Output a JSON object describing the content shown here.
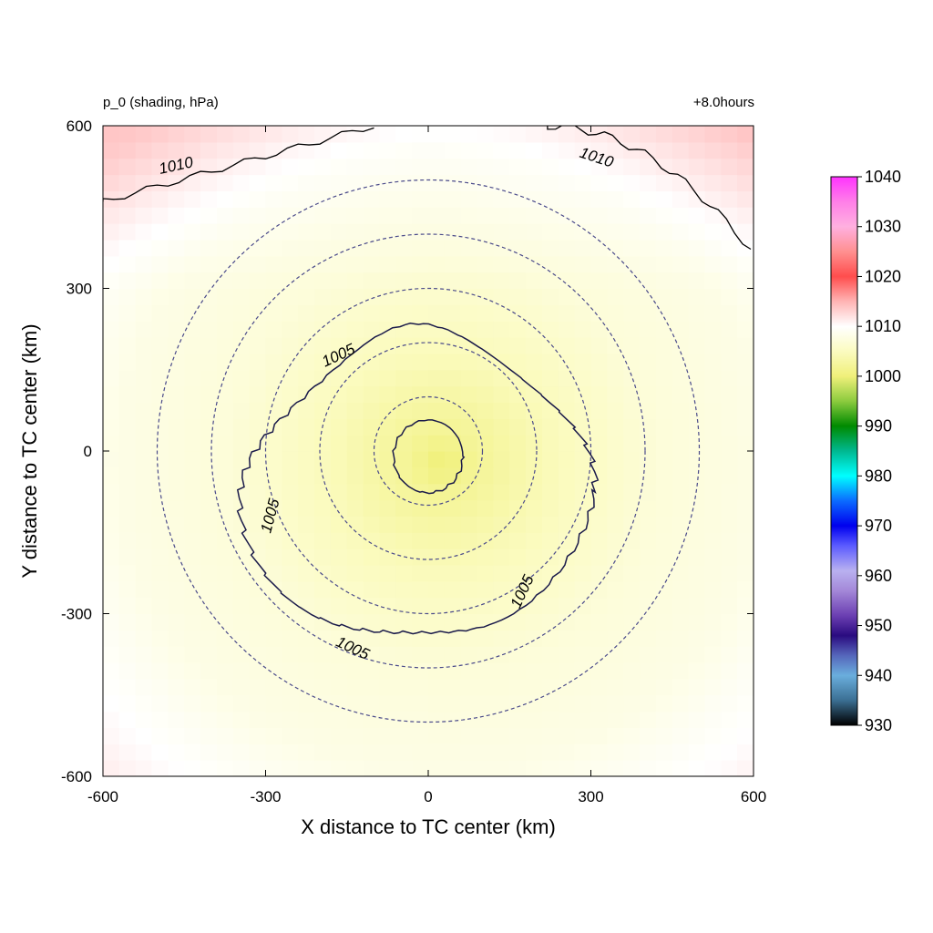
{
  "chart_data": {
    "type": "heatmap",
    "title_left": "p_0 (shading, hPa)",
    "title_right": "+8.0hours",
    "xlabel": "X distance to TC center (km)",
    "ylabel": "Y distance to TC center (km)",
    "xlim": [
      -600,
      600
    ],
    "ylim": [
      -600,
      600
    ],
    "x_ticks": [
      -600,
      -300,
      0,
      300,
      600
    ],
    "y_ticks": [
      -600,
      -300,
      0,
      300,
      600
    ],
    "x_tick_labels": [
      "-600",
      "-300",
      "0",
      "300",
      "600"
    ],
    "y_tick_labels": [
      "-600",
      "-300",
      "0",
      "300",
      "600"
    ],
    "field": {
      "variable": "p_0",
      "units": "hPa",
      "center_value": 1000,
      "radial_profile": [
        {
          "r_km": 0,
          "value": 1000
        },
        {
          "r_km": 60,
          "value": 1002
        },
        {
          "r_km": 200,
          "value": 1004.5
        },
        {
          "r_km": 400,
          "value": 1007
        },
        {
          "r_km": 600,
          "value": 1008
        },
        {
          "r_km": 850,
          "value": 1011
        }
      ]
    },
    "contours": [
      {
        "level": 1000,
        "shape": "inner-core",
        "labels": []
      },
      {
        "level": 1005,
        "shape": "irregular-ring",
        "labels": [
          {
            "text": "1005",
            "x": -165,
            "y": 175,
            "angle": -25
          },
          {
            "text": "1005",
            "x": -290,
            "y": -120,
            "angle": -75
          },
          {
            "text": "1005",
            "x": 175,
            "y": -260,
            "angle": -65
          },
          {
            "text": "1005",
            "x": -140,
            "y": -365,
            "angle": 25
          }
        ]
      },
      {
        "level": 1010,
        "shape": "corner-edges",
        "labels": [
          {
            "text": "1010",
            "x": -465,
            "y": 525,
            "angle": -12
          },
          {
            "text": "1010",
            "x": 310,
            "y": 540,
            "angle": 18
          }
        ]
      }
    ],
    "dashed_circles_km": [
      100,
      200,
      300,
      400,
      500
    ],
    "colorbar": {
      "min": 930,
      "max": 1040,
      "tick_values": [
        1040,
        1030,
        1020,
        1010,
        1000,
        990,
        980,
        970,
        960,
        950,
        940,
        930
      ],
      "tick_labels": [
        "1040",
        "1030",
        "1020",
        "1010",
        "1000",
        "990",
        "980",
        "970",
        "960",
        "950",
        "940",
        "930"
      ],
      "stops": [
        {
          "value": 930,
          "color": "#000000"
        },
        {
          "value": 935,
          "color": "#3b6f93"
        },
        {
          "value": 940,
          "color": "#6aaedd"
        },
        {
          "value": 944,
          "color": "#5566bb"
        },
        {
          "value": 948,
          "color": "#2a0b80"
        },
        {
          "value": 952,
          "color": "#6b3fb2"
        },
        {
          "value": 957,
          "color": "#a488d8"
        },
        {
          "value": 961,
          "color": "#b9b1f0"
        },
        {
          "value": 966,
          "color": "#5b5bff"
        },
        {
          "value": 970,
          "color": "#0000ee"
        },
        {
          "value": 975,
          "color": "#0b6bff"
        },
        {
          "value": 980,
          "color": "#00ffff"
        },
        {
          "value": 985,
          "color": "#00b890"
        },
        {
          "value": 990,
          "color": "#008a00"
        },
        {
          "value": 995,
          "color": "#8ccb3e"
        },
        {
          "value": 1000,
          "color": "#f0f07a"
        },
        {
          "value": 1005,
          "color": "#fbfbc0"
        },
        {
          "value": 1010,
          "color": "#ffffff"
        },
        {
          "value": 1015,
          "color": "#ffb4b4"
        },
        {
          "value": 1020,
          "color": "#ff4d4d"
        },
        {
          "value": 1025,
          "color": "#ff9090"
        },
        {
          "value": 1030,
          "color": "#ffb0e0"
        },
        {
          "value": 1035,
          "color": "#ff7fe8"
        },
        {
          "value": 1040,
          "color": "#ff33ff"
        }
      ]
    }
  }
}
